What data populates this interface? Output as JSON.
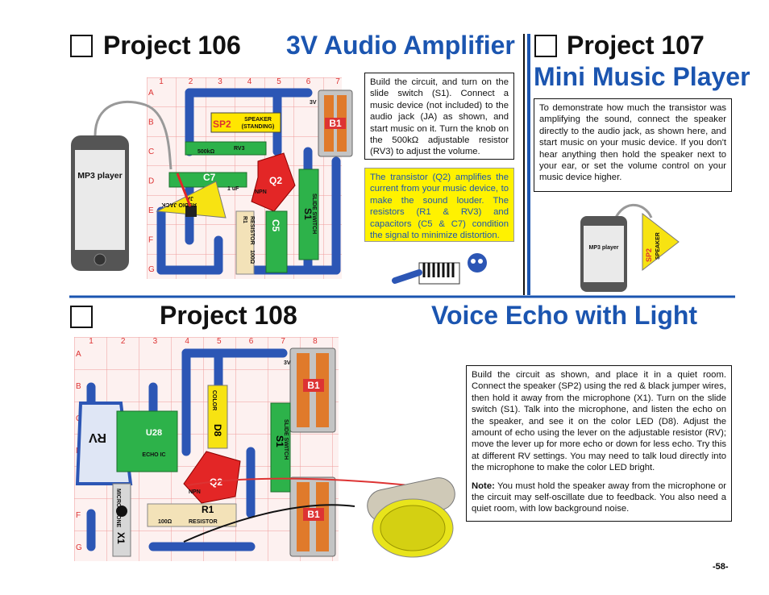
{
  "project106": {
    "number": "Project 106",
    "title": "3V Audio Amplifier",
    "instructions": "Build the circuit, and turn on the slide switch (S1). Connect a music device (not included) to the audio jack (JA) as shown, and start music on it. Turn the knob on the 500kΩ adjustable resistor (RV3) to adjust the volume.",
    "callout": "The transistor (Q2) amplifies the current from your music device, to make the sound louder. The resistors (R1 & RV3) and capacitors (C5 & C7) condition the signal to minimize distortion.",
    "device": "MP3 player",
    "circuit": {
      "columns": [
        "1",
        "2",
        "3",
        "4",
        "5",
        "6",
        "7"
      ],
      "rows": [
        "A",
        "B",
        "C",
        "D",
        "E",
        "F",
        "G"
      ],
      "parts": {
        "battery": "B1",
        "battery_voltage": "3V",
        "speaker": "SP2",
        "speaker_name": "SPEAKER",
        "speaker_note": "(STANDING)",
        "pot": "RV3",
        "pot_value": "500kΩ",
        "cap": "C7",
        "cap_value": "1 uF",
        "transistor": "Q2",
        "transistor_type": "NPN",
        "jack": "JA",
        "jack_name": "AUDIO JACK",
        "resistor": "R1",
        "resistor_name": "RESISTOR",
        "resistor_value": "100Ω",
        "cap2": "C5",
        "switch": "S1",
        "switch_name": "SLIDE SWITCH"
      }
    }
  },
  "project107": {
    "number": "Project 107",
    "title": "Mini Music Player",
    "instructions": "To demonstrate how much the transistor was amplifying the sound, connect the speaker directly to the audio jack, as shown here, and start music on your music device. If you don't hear anything then hold the speaker next to your ear, or set the volume control on your music device higher.",
    "device": "MP3 player",
    "speaker": "SP2",
    "speaker_name": "SPEAKER"
  },
  "project108": {
    "number": "Project 108",
    "title": "Voice Echo with Light",
    "instructions": "Build the circuit as shown, and place it in a quiet room. Connect the speaker (SP2) using the red & black jumper wires, then hold it away from the microphone (X1). Turn on the slide switch (S1). Talk into the microphone, and listen the echo on the speaker, and see it on the color LED (D8). Adjust the amount of echo using the lever on the adjustable resistor (RV); move the lever up for more echo or down for less echo. Try this at different RV settings. You may need to talk loud directly into the microphone to make the color LED bright.",
    "note_label": "Note:",
    "note": "You must hold the speaker away from the microphone or the circuit may self-oscillate due to feedback. You also need a quiet room, with low background noise.",
    "circuit": {
      "columns": [
        "1",
        "2",
        "3",
        "4",
        "5",
        "6",
        "7",
        "8"
      ],
      "rows": [
        "A",
        "B",
        "C",
        "D",
        "E",
        "F",
        "G"
      ],
      "parts": {
        "battery": "B1",
        "battery_voltage": "3V",
        "ic": "U28",
        "ic_name": "ECHO IC",
        "pot": "RV",
        "led": "D8",
        "led_name": "COLOR",
        "transistor": "Q2",
        "transistor_type": "NPN",
        "resistor": "R1",
        "resistor_value": "100Ω",
        "resistor_name": "RESISTOR",
        "switch": "S1",
        "switch_name": "SLIDE SWITCH",
        "mic": "X1",
        "mic_name": "MICROPHONE"
      }
    }
  },
  "page_number": "-58-"
}
